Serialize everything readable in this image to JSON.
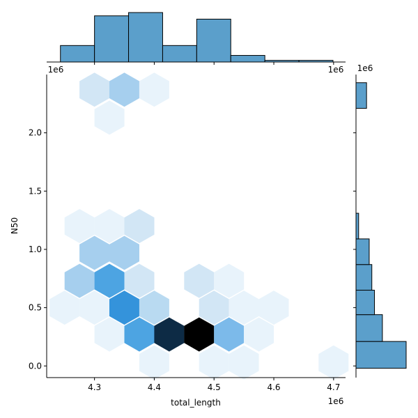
{
  "chart_data": {
    "type": "hexbin-jointplot",
    "xlabel": "total_length",
    "ylabel": "N50",
    "x_offset_label": "1e6",
    "y_offset_label": "1e6",
    "xlim": [
      4.22,
      4.72
    ],
    "ylim": [
      -0.1,
      2.5
    ],
    "x_ticks": [
      4.3,
      4.4,
      4.5,
      4.6,
      4.7
    ],
    "x_tick_labels": [
      "4.3",
      "4.4",
      "4.5",
      "4.6",
      "4.7"
    ],
    "y_ticks": [
      0.0,
      0.5,
      1.0,
      1.5,
      2.0
    ],
    "y_tick_labels": [
      "0.0",
      "0.5",
      "1.0",
      "1.5",
      "2.0"
    ],
    "colors": {
      "c1": "#e8f3fb",
      "c2": "#d2e6f5",
      "c3": "#b9daf1",
      "c4": "#a6cfee",
      "c5": "#7cbaea",
      "c6": "#4da4e2",
      "c7": "#3493db",
      "c8": "#0d2b45",
      "c9": "#000000",
      "hist": "#5b9fcb"
    },
    "hexbins": [
      {
        "x": 4.3,
        "y": 2.37,
        "c": "c2"
      },
      {
        "x": 4.35,
        "y": 2.37,
        "c": "c4"
      },
      {
        "x": 4.4,
        "y": 2.37,
        "c": "c1"
      },
      {
        "x": 4.325,
        "y": 2.13,
        "c": "c1"
      },
      {
        "x": 4.275,
        "y": 1.2,
        "c": "c1"
      },
      {
        "x": 4.325,
        "y": 1.2,
        "c": "c1"
      },
      {
        "x": 4.375,
        "y": 1.2,
        "c": "c2"
      },
      {
        "x": 4.3,
        "y": 0.97,
        "c": "c4"
      },
      {
        "x": 4.35,
        "y": 0.97,
        "c": "c4"
      },
      {
        "x": 4.275,
        "y": 0.73,
        "c": "c4"
      },
      {
        "x": 4.325,
        "y": 0.73,
        "c": "c6"
      },
      {
        "x": 4.375,
        "y": 0.73,
        "c": "c2"
      },
      {
        "x": 4.475,
        "y": 0.73,
        "c": "c2"
      },
      {
        "x": 4.525,
        "y": 0.73,
        "c": "c1"
      },
      {
        "x": 4.25,
        "y": 0.5,
        "c": "c1"
      },
      {
        "x": 4.3,
        "y": 0.5,
        "c": "c1"
      },
      {
        "x": 4.35,
        "y": 0.5,
        "c": "c7"
      },
      {
        "x": 4.4,
        "y": 0.5,
        "c": "c3"
      },
      {
        "x": 4.5,
        "y": 0.5,
        "c": "c2"
      },
      {
        "x": 4.55,
        "y": 0.5,
        "c": "c1"
      },
      {
        "x": 4.6,
        "y": 0.5,
        "c": "c1"
      },
      {
        "x": 4.325,
        "y": 0.27,
        "c": "c1"
      },
      {
        "x": 4.375,
        "y": 0.27,
        "c": "c6"
      },
      {
        "x": 4.425,
        "y": 0.27,
        "c": "c8"
      },
      {
        "x": 4.475,
        "y": 0.27,
        "c": "c9"
      },
      {
        "x": 4.525,
        "y": 0.27,
        "c": "c5"
      },
      {
        "x": 4.575,
        "y": 0.27,
        "c": "c1"
      },
      {
        "x": 4.4,
        "y": 0.03,
        "c": "c1"
      },
      {
        "x": 4.5,
        "y": 0.03,
        "c": "c1"
      },
      {
        "x": 4.55,
        "y": 0.03,
        "c": "c1"
      },
      {
        "x": 4.7,
        "y": 0.03,
        "c": "c1"
      }
    ],
    "x_hist": {
      "edges": [
        4.243,
        4.3,
        4.357,
        4.414,
        4.471,
        4.528,
        4.585,
        4.642,
        4.699
      ],
      "counts": [
        5,
        14,
        15,
        5,
        13,
        2,
        0.5,
        0.5
      ]
    },
    "y_hist": {
      "edges": [
        -0.02,
        0.21,
        0.44,
        0.65,
        0.87,
        1.09,
        1.31,
        2.21,
        2.43
      ],
      "counts": [
        19,
        10,
        7,
        6,
        5,
        1,
        0,
        4
      ]
    }
  }
}
